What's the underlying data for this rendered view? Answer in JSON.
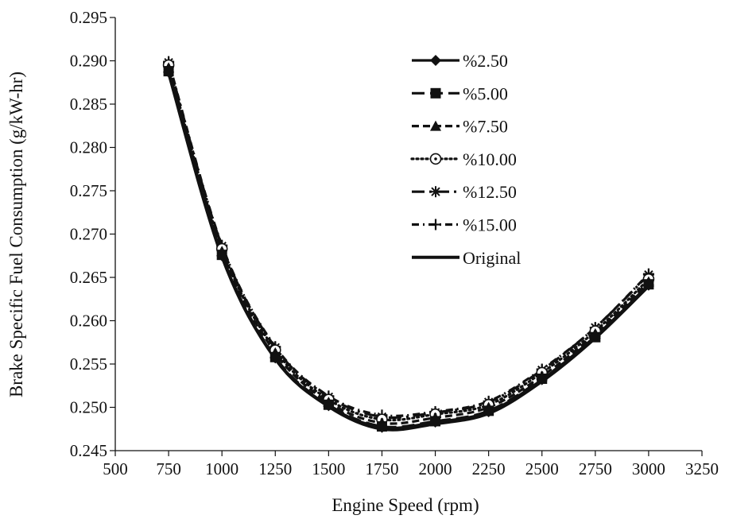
{
  "chart_data": {
    "type": "line",
    "title": "",
    "xlabel": "Engine Speed (rpm)",
    "ylabel": "Brake Specific Fuel Consumption (g/kW-hr)",
    "xlim": [
      500,
      3250
    ],
    "ylim": [
      0.245,
      0.295
    ],
    "xticks": [
      500,
      750,
      1000,
      1250,
      1500,
      1750,
      2000,
      2250,
      2500,
      2750,
      3000,
      3250
    ],
    "xtick_labels": [
      "500",
      "750",
      "1000",
      "1250",
      "1500",
      "1750",
      "2000",
      "2250",
      "2500",
      "2750",
      "3000",
      "3250"
    ],
    "yticks": [
      0.245,
      0.25,
      0.255,
      0.26,
      0.265,
      0.27,
      0.275,
      0.28,
      0.285,
      0.29,
      0.295
    ],
    "ytick_labels": [
      "0.245",
      "0.250",
      "0.255",
      "0.260",
      "0.265",
      "0.270",
      "0.275",
      "0.280",
      "0.285",
      "0.290",
      "0.295"
    ],
    "grid": false,
    "legend_position": "top-right",
    "x": [
      750,
      1000,
      1250,
      1500,
      1750,
      2000,
      2250,
      2500,
      2750,
      3000
    ],
    "series": [
      {
        "name": "%2.50",
        "marker": "diamond",
        "dash": "solid",
        "values": [
          0.2887,
          0.2675,
          0.2557,
          0.2502,
          0.2477,
          0.2483,
          0.2495,
          0.2532,
          0.2582,
          0.2641
        ]
      },
      {
        "name": "%5.00",
        "marker": "square",
        "dash": "longdash",
        "values": [
          0.2888,
          0.2676,
          0.2558,
          0.2503,
          0.2478,
          0.2484,
          0.2496,
          0.2533,
          0.2581,
          0.2642
        ]
      },
      {
        "name": "%7.50",
        "marker": "triangle",
        "dash": "shortdash",
        "values": [
          0.2892,
          0.268,
          0.2563,
          0.2506,
          0.2482,
          0.2488,
          0.25,
          0.2536,
          0.2585,
          0.2645
        ]
      },
      {
        "name": "%10.00",
        "marker": "circle",
        "dash": "dotted",
        "values": [
          0.2895,
          0.2683,
          0.2566,
          0.2509,
          0.2486,
          0.2492,
          0.2503,
          0.254,
          0.2588,
          0.2648
        ]
      },
      {
        "name": "%12.50",
        "marker": "asterisk",
        "dash": "longdashdot",
        "values": [
          0.2898,
          0.2686,
          0.2569,
          0.2512,
          0.2489,
          0.2494,
          0.2506,
          0.2543,
          0.2592,
          0.2653
        ]
      },
      {
        "name": "%15.00",
        "marker": "plus",
        "dash": "dashdot",
        "values": [
          0.2899,
          0.2687,
          0.257,
          0.2513,
          0.2491,
          0.2495,
          0.2507,
          0.2544,
          0.2592,
          0.2654
        ]
      },
      {
        "name": "Original",
        "marker": "none",
        "dash": "solid",
        "values": [
          0.2886,
          0.2674,
          0.2556,
          0.2501,
          0.2475,
          0.2481,
          0.2493,
          0.253,
          0.258,
          0.264
        ]
      }
    ]
  }
}
